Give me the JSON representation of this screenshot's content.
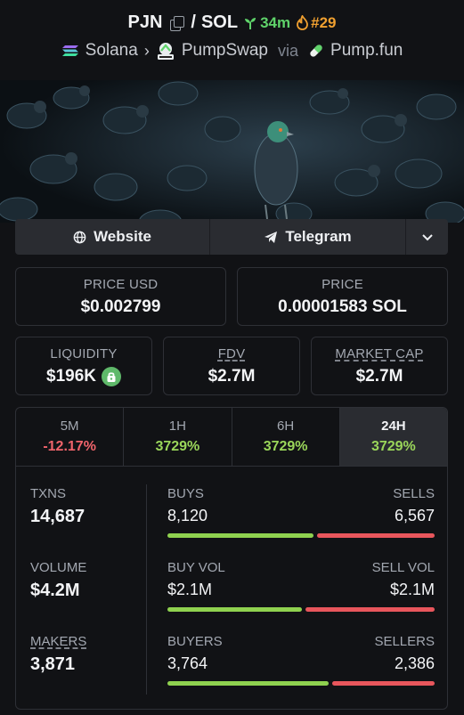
{
  "header": {
    "token": "PJN",
    "separator": "/",
    "quote": "SOL",
    "age": "34m",
    "rank": "#29",
    "chain": "Solana",
    "dex": "PumpSwap",
    "via": "via",
    "launchpad": "Pump.fun"
  },
  "links": {
    "website": "Website",
    "telegram": "Telegram"
  },
  "prices": {
    "price_usd_label": "PRICE USD",
    "price_usd": "$0.002799",
    "price_label": "PRICE",
    "price_native": "0.00001583 SOL"
  },
  "metrics": {
    "liquidity_label": "LIQUIDITY",
    "liquidity": "$196K",
    "fdv_label": "FDV",
    "fdv": "$2.7M",
    "mcap_label": "MARKET CAP",
    "mcap": "$2.7M"
  },
  "tabs": [
    {
      "label": "5M",
      "change": "-12.17%"
    },
    {
      "label": "1H",
      "change": "3729%"
    },
    {
      "label": "6H",
      "change": "3729%"
    },
    {
      "label": "24H",
      "change": "3729%"
    }
  ],
  "stats": {
    "txns_label": "TXNS",
    "txns": "14,687",
    "volume_label": "VOLUME",
    "volume": "$4.2M",
    "makers_label": "MAKERS",
    "makers": "3,871",
    "buys_label": "BUYS",
    "buys": "8,120",
    "sells_label": "SELLS",
    "sells": "6,567",
    "buyvol_label": "BUY VOL",
    "buyvol": "$2.1M",
    "sellvol_label": "SELL VOL",
    "sellvol": "$2.1M",
    "buyers_label": "BUYERS",
    "buyers": "3,764",
    "sellers_label": "SELLERS",
    "sellers": "2,386",
    "buys_ratio": 0.553,
    "buyvol_ratio": 0.51,
    "buyers_ratio": 0.612
  },
  "colors": {
    "positive": "#9ad65a",
    "negative": "#f0646b",
    "bar_green": "#8fd14f",
    "bar_red": "#e8565c",
    "age": "#5fd36a",
    "rank": "#f0a030"
  }
}
